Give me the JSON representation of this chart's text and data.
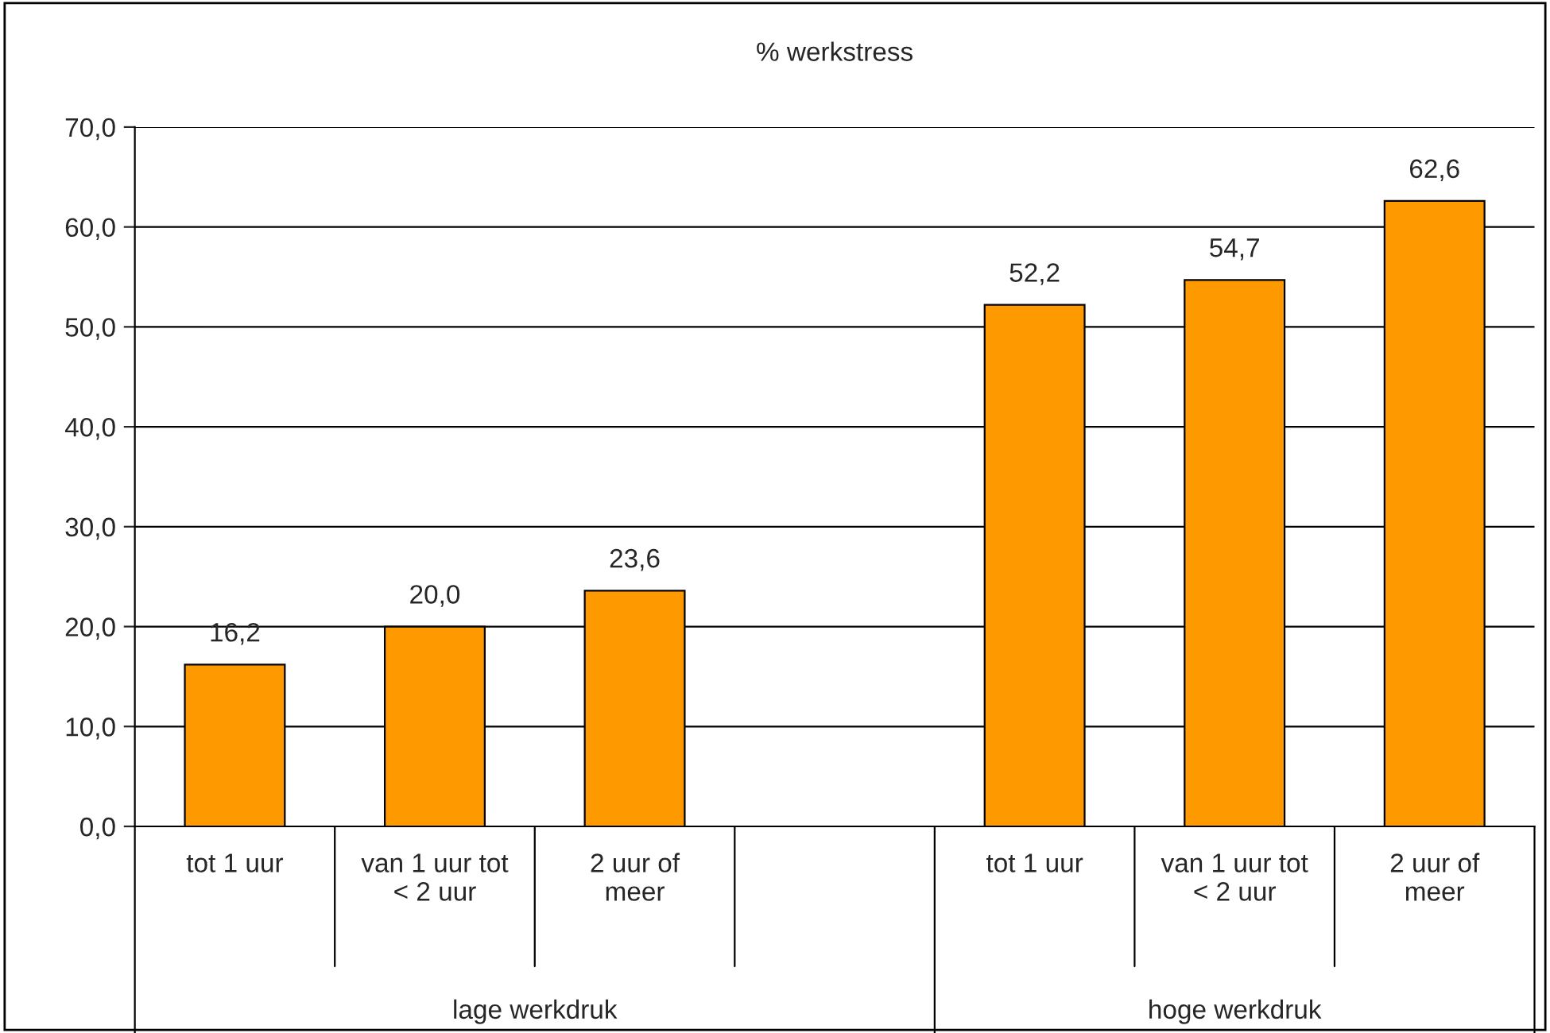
{
  "chart_data": {
    "type": "bar",
    "title": "% werkstress",
    "categories": [
      "tot 1 uur",
      "van 1 uur tot\n< 2 uur",
      "2 uur of\nmeer",
      null,
      "tot 1 uur",
      "van 1 uur tot\n< 2 uur",
      "2 uur of\nmeer"
    ],
    "values": [
      16.2,
      20.0,
      23.6,
      null,
      52.2,
      54.7,
      62.6
    ],
    "value_labels": [
      "16,2",
      "20,0",
      "23,6",
      null,
      "52,2",
      "54,7",
      "62,6"
    ],
    "color": "#ff9900",
    "ylim": [
      0,
      70
    ],
    "yticks": [
      {
        "value": 0,
        "label": "0,0"
      },
      {
        "value": 10,
        "label": "10,0"
      },
      {
        "value": 20,
        "label": "20,0"
      },
      {
        "value": 30,
        "label": "30,0"
      },
      {
        "value": 40,
        "label": "40,0"
      },
      {
        "value": 50,
        "label": "50,0"
      },
      {
        "value": 60,
        "label": "60,0"
      },
      {
        "value": 70,
        "label": "70,0"
      }
    ],
    "grid": "y",
    "annotations": [
      "lage werkdruk",
      "hoge werkdruk"
    ]
  }
}
